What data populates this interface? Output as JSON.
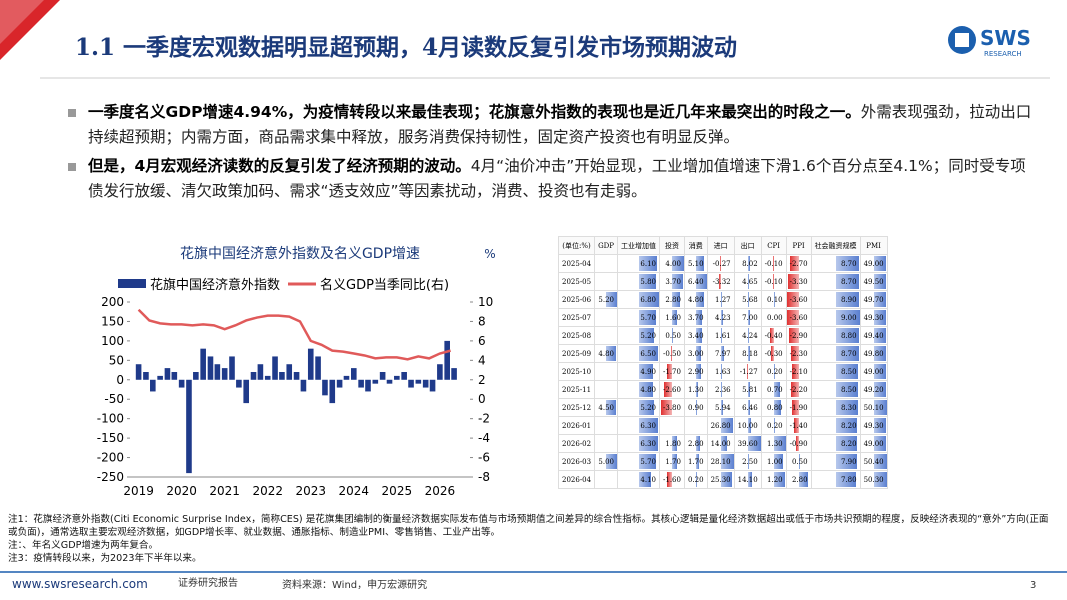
{
  "header": {
    "title": "1.1 一季度宏观数据明显超预期，4月读数反复引发市场预期波动",
    "logo": "SWS",
    "logo_sub": "RESEARCH"
  },
  "bullets": [
    {
      "bold": "一季度名义GDP增速4.94%，为疫情转段以来最佳表现；花旗意外指数的表现也是近几年来最突出的时段之一。",
      "text": "外需表现强劲，拉动出口持续超预期；内需方面，商品需求集中释放，服务消费保持韧性，固定资产投资也有明显反弹。"
    },
    {
      "bold": "但是，4月宏观经济读数的反复引发了经济预期的波动。",
      "text": "4月“油价冲击”开始显现，工业增加值增速下滑1.6个百分点至4.1%；同时受专项债发行放缓、清欠政策加码、需求“透支效应”等因素扰动，消费、投资也有走弱。"
    }
  ],
  "chart_data": {
    "type": "combo",
    "title": "花旗中国经济意外指数及名义GDP增速",
    "y2label": "%",
    "xlim": [
      2018.8,
      2026.7
    ],
    "xticks": [
      2019,
      2020,
      2021,
      2022,
      2023,
      2024,
      2025,
      2026
    ],
    "ylim": [
      -250,
      200
    ],
    "yticks": [
      -250,
      -200,
      -150,
      -100,
      -50,
      0,
      50,
      100,
      150,
      200
    ],
    "y2lim": [
      -8,
      10
    ],
    "y2ticks": [
      -8,
      -6,
      -4,
      -2,
      0,
      2,
      4,
      6,
      8,
      10
    ],
    "series": [
      {
        "name": "花旗中国经济意外指数",
        "type": "bar",
        "color": "#1f3a8a",
        "x": [
          2019,
          2019.17,
          2019.33,
          2019.5,
          2019.67,
          2019.83,
          2020,
          2020.17,
          2020.33,
          2020.5,
          2020.67,
          2020.83,
          2021,
          2021.17,
          2021.33,
          2021.5,
          2021.67,
          2021.83,
          2022,
          2022.17,
          2022.33,
          2022.5,
          2022.67,
          2022.83,
          2023,
          2023.17,
          2023.33,
          2023.5,
          2023.67,
          2023.83,
          2024,
          2024.17,
          2024.33,
          2024.5,
          2024.67,
          2024.83,
          2025,
          2025.17,
          2025.33,
          2025.5,
          2025.67,
          2025.83,
          2026,
          2026.17,
          2026.33
        ],
        "values": [
          40,
          20,
          -30,
          10,
          30,
          20,
          -20,
          -240,
          20,
          80,
          60,
          40,
          30,
          60,
          -20,
          -60,
          20,
          40,
          10,
          60,
          20,
          40,
          20,
          -30,
          80,
          60,
          -40,
          -60,
          -20,
          10,
          30,
          -20,
          -30,
          -10,
          20,
          -10,
          10,
          20,
          -20,
          -10,
          -20,
          -30,
          40,
          100,
          30
        ]
      },
      {
        "name": "名义GDP当季同比(右)",
        "type": "line",
        "axis": "y2",
        "color": "#e05a5a",
        "x": [
          2019,
          2019.25,
          2019.5,
          2019.75,
          2020,
          2020.25,
          2020.5,
          2020.75,
          2021,
          2021.25,
          2021.5,
          2021.75,
          2022,
          2022.25,
          2022.5,
          2022.75,
          2023,
          2023.25,
          2023.5,
          2023.75,
          2024,
          2024.25,
          2024.5,
          2024.75,
          2025,
          2025.25,
          2025.5,
          2025.75,
          2026,
          2026.25
        ],
        "values": [
          9.2,
          8.1,
          7.8,
          7.7,
          7.7,
          7.6,
          7.7,
          7.6,
          7.2,
          7.6,
          8.1,
          8.4,
          8.6,
          8.6,
          8.5,
          8.0,
          6.0,
          5.6,
          5.0,
          4.9,
          4.7,
          4.5,
          4.2,
          4.3,
          4.3,
          4.1,
          4.4,
          4.2,
          4.7,
          5.0
        ]
      }
    ]
  },
  "table": {
    "header": [
      "(单位:%)",
      "GDP",
      "工业增加值",
      "投资",
      "消费",
      "进口",
      "出口",
      "CPI",
      "PPI",
      "社会融资规模",
      "PMI"
    ],
    "rows": [
      [
        "2025-04",
        "",
        "6.10",
        "4.00",
        "5.10",
        "-0.27",
        "8.02",
        "-0.10",
        "-2.70",
        "8.70",
        "49.00"
      ],
      [
        "2025-05",
        "",
        "5.80",
        "3.70",
        "6.40",
        "-3.32",
        "4.65",
        "-0.10",
        "-3.30",
        "8.70",
        "49.50"
      ],
      [
        "2025-06",
        "5.20",
        "6.80",
        "2.80",
        "4.80",
        "1.27",
        "5.68",
        "0.10",
        "-3.60",
        "8.90",
        "49.70"
      ],
      [
        "2025-07",
        "",
        "5.70",
        "1.60",
        "3.70",
        "4.23",
        "7.00",
        "0.00",
        "-3.60",
        "9.00",
        "49.30"
      ],
      [
        "2025-08",
        "",
        "5.20",
        "0.50",
        "3.40",
        "1.61",
        "4.24",
        "-0.40",
        "-2.90",
        "8.80",
        "49.40"
      ],
      [
        "2025-09",
        "4.80",
        "6.50",
        "-0.50",
        "3.00",
        "7.97",
        "8.18",
        "-0.30",
        "-2.30",
        "8.70",
        "49.80"
      ],
      [
        "2025-10",
        "",
        "4.90",
        "-1.70",
        "2.90",
        "1.63",
        "-1.27",
        "0.20",
        "-2.10",
        "8.50",
        "49.00"
      ],
      [
        "2025-11",
        "",
        "4.80",
        "-2.60",
        "1.30",
        "2.36",
        "5.81",
        "0.70",
        "-2.20",
        "8.50",
        "49.20"
      ],
      [
        "2025-12",
        "4.50",
        "5.20",
        "-3.80",
        "0.90",
        "5.94",
        "6.46",
        "0.80",
        "-1.90",
        "8.30",
        "50.10"
      ],
      [
        "2026-01",
        "",
        "6.30",
        "",
        "",
        "26.80",
        "10.00",
        "0.20",
        "-1.40",
        "8.20",
        "49.30"
      ],
      [
        "2026-02",
        "",
        "6.30",
        "1.80",
        "2.80",
        "14.00",
        "39.60",
        "1.30",
        "-0.90",
        "8.20",
        "49.00"
      ],
      [
        "2026-03",
        "5.00",
        "5.70",
        "1.70",
        "1.70",
        "28.10",
        "2.50",
        "1.00",
        "0.50",
        "7.90",
        "50.40"
      ],
      [
        "2026-04",
        "",
        "4.10",
        "-1.60",
        "0.20",
        "25.30",
        "14.10",
        "1.20",
        "2.80",
        "7.80",
        "50.30"
      ]
    ]
  },
  "notes": [
    "注1：花旗经济意外指数(Citi Economic Surprise Index，简称CES) 是花旗集团编制的衡量经济数据实际发布值与市场预期值之间差异的综合性指标。其核心逻辑是量化经济数据超出或低于市场共识预期的程度，反映经济表现的“意外”方向(正面或负面)，通常选取主要宏观经济数据，如GDP增长率、就业数据、通胀指标、制造业PMI、零售销售、工业产出等。",
    "注：、年名义GDP增速为两年复合。",
    "注3：疫情转段以来，为2023年下半年以来。"
  ],
  "footer": {
    "site": "www.swsresearch.com",
    "label": "证券研究报告",
    "source": "资料来源：Wind，申万宏源研究",
    "page": "3"
  }
}
